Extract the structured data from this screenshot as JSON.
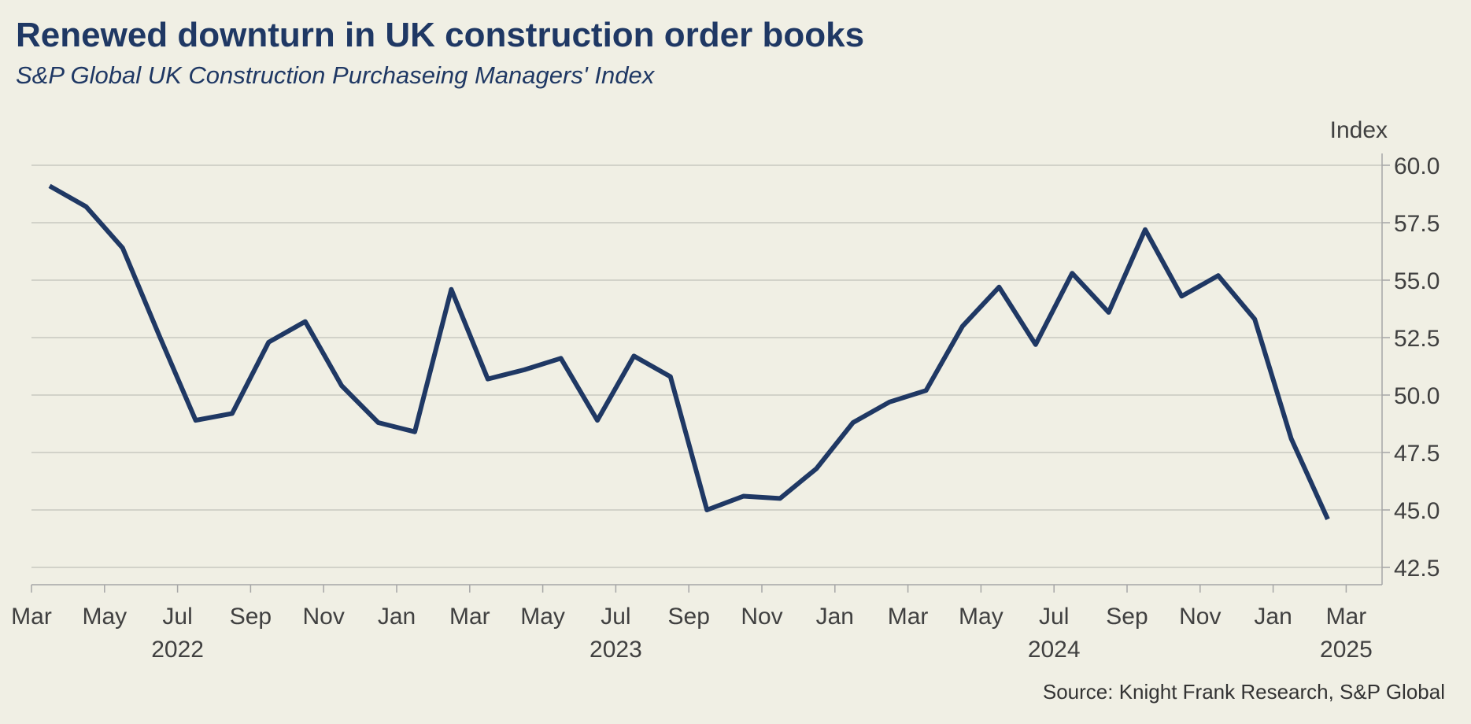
{
  "header": {
    "title": "Renewed downturn in UK construction order books",
    "subtitle": "S&P Global UK Construction Purchaseing Managers' Index"
  },
  "footer": {
    "source": "Source: Knight Frank Research, S&P Global"
  },
  "colors": {
    "line": "#1f3864",
    "grid": "#c8c8c0",
    "axis": "#a6a6a6",
    "text": "#404040",
    "background": "#f0efe4"
  },
  "chart_data": {
    "type": "line",
    "title": "Renewed downturn in UK construction order books",
    "subtitle": "S&P Global UK Construction Purchaseing Managers' Index",
    "ylabel": "Index",
    "xlabel": "",
    "ylim": [
      42.5,
      60.0
    ],
    "yticks": [
      42.5,
      45.0,
      47.5,
      50.0,
      52.5,
      55.0,
      57.5,
      60.0
    ],
    "ytick_labels": [
      "42.5",
      "45.0",
      "47.5",
      "50.0",
      "52.5",
      "55.0",
      "57.5",
      "60.0"
    ],
    "grid": true,
    "x_month_ticks": [
      "Mar",
      "May",
      "Jul",
      "Sep",
      "Nov",
      "Jan",
      "Mar",
      "May",
      "Jul",
      "Sep",
      "Nov",
      "Jan",
      "Mar",
      "May",
      "Jul",
      "Sep",
      "Nov",
      "Jan",
      "Mar"
    ],
    "x_year_labels": [
      {
        "label": "2022",
        "center_month_index": 4
      },
      {
        "label": "2023",
        "center_month_index": 16
      },
      {
        "label": "2024",
        "center_month_index": 28
      },
      {
        "label": "2025",
        "center_month_index": 36
      }
    ],
    "series": [
      {
        "name": "UK Construction PMI",
        "x": [
          "Mar 2022",
          "Apr 2022",
          "May 2022",
          "Jun 2022",
          "Jul 2022",
          "Aug 2022",
          "Sep 2022",
          "Oct 2022",
          "Nov 2022",
          "Dec 2022",
          "Jan 2023",
          "Feb 2023",
          "Mar 2023",
          "Apr 2023",
          "May 2023",
          "Jun 2023",
          "Jul 2023",
          "Aug 2023",
          "Sep 2023",
          "Oct 2023",
          "Nov 2023",
          "Dec 2023",
          "Jan 2024",
          "Feb 2024",
          "Mar 2024",
          "Apr 2024",
          "May 2024",
          "Jun 2024",
          "Jul 2024",
          "Aug 2024",
          "Sep 2024",
          "Oct 2024",
          "Nov 2024",
          "Dec 2024",
          "Jan 2025",
          "Feb 2025"
        ],
        "values": [
          59.1,
          58.2,
          56.4,
          52.6,
          48.9,
          49.2,
          52.3,
          53.2,
          50.4,
          48.8,
          48.4,
          54.6,
          50.7,
          51.1,
          51.6,
          48.9,
          51.7,
          50.8,
          45.0,
          45.6,
          45.5,
          46.8,
          48.8,
          49.7,
          50.2,
          53.0,
          54.7,
          52.2,
          55.3,
          53.6,
          57.2,
          54.3,
          55.2,
          53.3,
          48.1,
          44.6
        ]
      }
    ]
  }
}
